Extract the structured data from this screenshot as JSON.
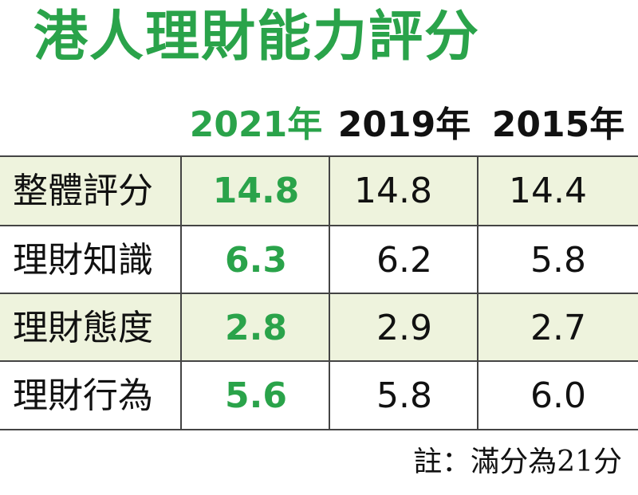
{
  "chart_data": {
    "type": "table",
    "title": "港人理財能力評分",
    "columns": [
      "2021年",
      "2019年",
      "2015年"
    ],
    "rows": [
      {
        "label": "整體評分",
        "values": [
          "14.8",
          "14.8",
          "14.4"
        ]
      },
      {
        "label": "理財知識",
        "values": [
          "6.3",
          "6.2",
          "5.8"
        ]
      },
      {
        "label": "理財態度",
        "values": [
          "2.8",
          "2.9",
          "2.7"
        ]
      },
      {
        "label": "理財行為",
        "values": [
          "5.6",
          "5.8",
          "6.0"
        ]
      }
    ],
    "note": "註：滿分為21分"
  },
  "colors": {
    "accent": "#2aa34a",
    "row_shade": "#eef3dd",
    "text": "#111111",
    "rule": "#444444"
  }
}
